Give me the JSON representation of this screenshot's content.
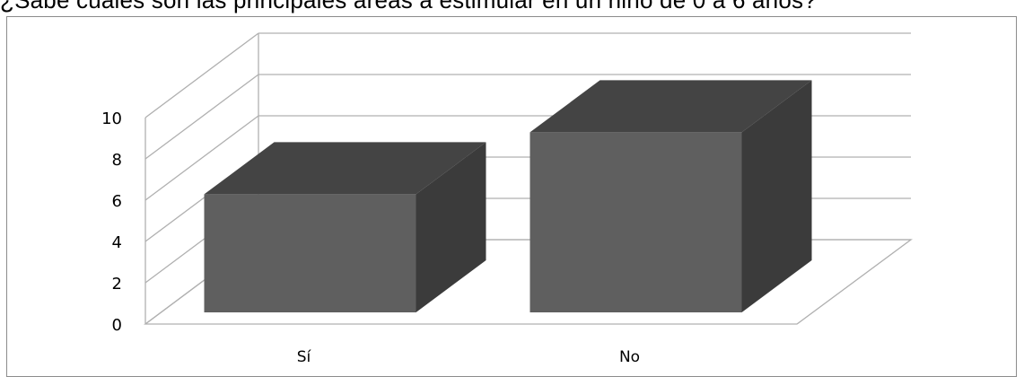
{
  "chart_data": {
    "type": "bar",
    "title": "¿Sabe cuáles son las principales áreas a estimular en un niño de 0 a 6 años?",
    "categories": [
      "Sí",
      "No"
    ],
    "values": [
      6.2,
      9.2
    ],
    "ylim": [
      0,
      10
    ],
    "yticks": [
      "0",
      "2",
      "4",
      "6",
      "8",
      "10"
    ],
    "grid": true,
    "legend": "none",
    "style": "3d",
    "colors": {
      "bar_front": "#5f5f5f",
      "bar_top": "#444444",
      "bar_side": "#3b3b3b",
      "gridline": "#b0b0b0"
    }
  }
}
